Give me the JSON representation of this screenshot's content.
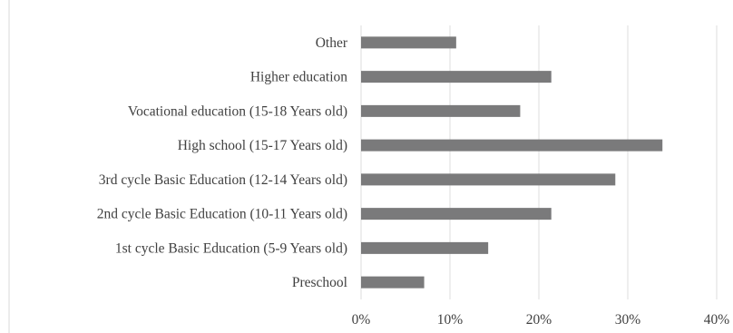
{
  "chart_data": {
    "type": "bar",
    "orientation": "horizontal",
    "title": "",
    "xlabel": "",
    "ylabel": "",
    "categories": [
      "Other",
      "Higher education",
      "Vocational education (15-18 Years old)",
      "High school (15-17 Years old)",
      "3rd cycle Basic Education (12-14 Years old)",
      "2nd cycle Basic Education (10-11 Years old)",
      "1st cycle Basic Education (5-9 Years old)",
      "Preschool"
    ],
    "values": [
      10.7,
      21.4,
      17.9,
      33.9,
      28.6,
      21.4,
      14.3,
      7.1
    ],
    "xlim": [
      0,
      40
    ],
    "xticks": [
      0,
      10,
      20,
      30,
      40
    ],
    "xtick_labels": [
      "0%",
      "10%",
      "20%",
      "30%",
      "40%"
    ],
    "grid": true,
    "legend": "none",
    "colors": {
      "bar": "#7a7a7b",
      "grid": "#dcdcdc",
      "text": "#404040"
    }
  }
}
